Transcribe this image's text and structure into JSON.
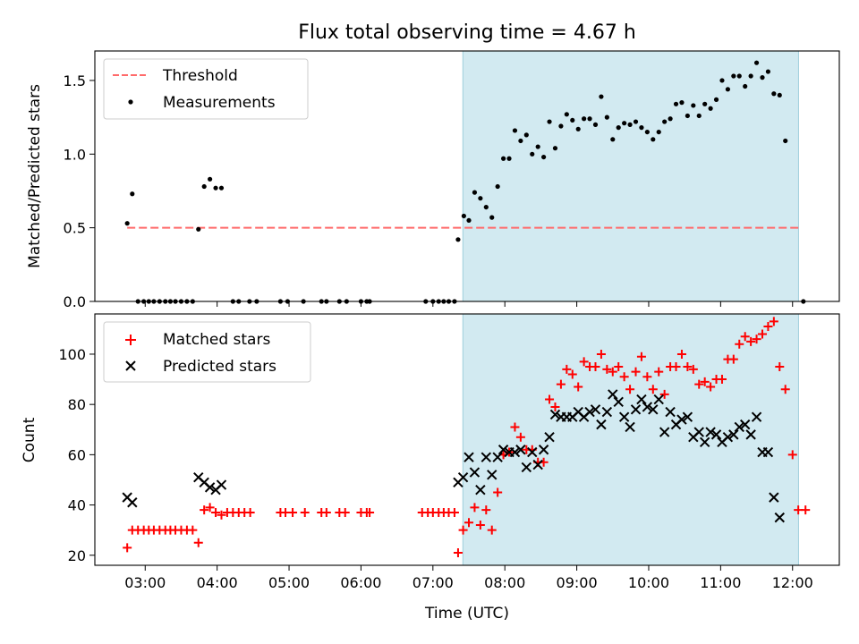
{
  "figure": {
    "title": "Flux total observing time = 4.67 h",
    "xlabel": "Time (UTC)",
    "x_ticks": [
      "03:00",
      "04:00",
      "05:00",
      "06:00",
      "07:00",
      "08:00",
      "09:00",
      "10:00",
      "11:00",
      "12:00"
    ],
    "shaded_color": "#add8e6",
    "threshold_color": "#ff6b6b",
    "measure_color": "#000000",
    "matched_color": "#ff0000",
    "predicted_color": "#000000"
  },
  "chart_data": [
    {
      "type": "scatter",
      "panel": "top",
      "ylabel": "Matched/Predicted stars",
      "ylim": [
        0,
        1.7
      ],
      "y_ticks": [
        "0.0",
        "0.5",
        "1.0",
        "1.5"
      ],
      "x_unit": "decimal hours UTC",
      "xlim": [
        2.3,
        12.65
      ],
      "shaded_range": [
        "07:25",
        "12:05"
      ],
      "legend_position": "upper-left",
      "threshold": {
        "name": "Threshold",
        "y": 0.5,
        "x_range": [
          2.75,
          12.12
        ]
      },
      "series": [
        {
          "name": "Measurements",
          "points": [
            [
              2.75,
              0.53
            ],
            [
              2.82,
              0.73
            ],
            [
              2.9,
              0
            ],
            [
              2.98,
              0
            ],
            [
              3.05,
              0
            ],
            [
              3.12,
              0
            ],
            [
              3.2,
              0
            ],
            [
              3.28,
              0
            ],
            [
              3.35,
              0
            ],
            [
              3.42,
              0
            ],
            [
              3.5,
              0
            ],
            [
              3.58,
              0
            ],
            [
              3.66,
              0
            ],
            [
              3.74,
              0.49
            ],
            [
              3.82,
              0.78
            ],
            [
              3.9,
              0.83
            ],
            [
              3.98,
              0.77
            ],
            [
              4.06,
              0.77
            ],
            [
              4.22,
              0
            ],
            [
              4.3,
              0
            ],
            [
              4.45,
              0
            ],
            [
              4.55,
              0
            ],
            [
              4.88,
              0
            ],
            [
              4.98,
              0
            ],
            [
              5.2,
              0
            ],
            [
              5.45,
              0
            ],
            [
              5.52,
              0
            ],
            [
              5.7,
              0
            ],
            [
              5.8,
              0
            ],
            [
              6.0,
              0
            ],
            [
              6.08,
              0
            ],
            [
              6.12,
              0
            ],
            [
              6.9,
              0
            ],
            [
              7.0,
              0
            ],
            [
              7.08,
              0
            ],
            [
              7.15,
              0
            ],
            [
              7.22,
              0
            ],
            [
              7.3,
              0
            ],
            [
              7.35,
              0.42
            ],
            [
              7.43,
              0.58
            ],
            [
              7.5,
              0.55
            ],
            [
              7.58,
              0.74
            ],
            [
              7.66,
              0.7
            ],
            [
              7.74,
              0.64
            ],
            [
              7.82,
              0.57
            ],
            [
              7.9,
              0.78
            ],
            [
              7.98,
              0.97
            ],
            [
              8.06,
              0.97
            ],
            [
              8.14,
              1.16
            ],
            [
              8.22,
              1.09
            ],
            [
              8.3,
              1.13
            ],
            [
              8.38,
              1.0
            ],
            [
              8.46,
              1.05
            ],
            [
              8.54,
              0.98
            ],
            [
              8.62,
              1.22
            ],
            [
              8.7,
              1.04
            ],
            [
              8.78,
              1.19
            ],
            [
              8.86,
              1.27
            ],
            [
              8.94,
              1.23
            ],
            [
              9.02,
              1.17
            ],
            [
              9.1,
              1.24
            ],
            [
              9.18,
              1.24
            ],
            [
              9.26,
              1.2
            ],
            [
              9.34,
              1.39
            ],
            [
              9.42,
              1.25
            ],
            [
              9.5,
              1.1
            ],
            [
              9.58,
              1.18
            ],
            [
              9.66,
              1.21
            ],
            [
              9.74,
              1.2
            ],
            [
              9.82,
              1.22
            ],
            [
              9.9,
              1.18
            ],
            [
              9.98,
              1.15
            ],
            [
              10.06,
              1.1
            ],
            [
              10.14,
              1.15
            ],
            [
              10.22,
              1.22
            ],
            [
              10.3,
              1.24
            ],
            [
              10.38,
              1.34
            ],
            [
              10.46,
              1.35
            ],
            [
              10.54,
              1.26
            ],
            [
              10.62,
              1.33
            ],
            [
              10.7,
              1.26
            ],
            [
              10.78,
              1.34
            ],
            [
              10.86,
              1.31
            ],
            [
              10.94,
              1.37
            ],
            [
              11.02,
              1.5
            ],
            [
              11.1,
              1.44
            ],
            [
              11.18,
              1.53
            ],
            [
              11.26,
              1.53
            ],
            [
              11.34,
              1.46
            ],
            [
              11.42,
              1.53
            ],
            [
              11.5,
              1.62
            ],
            [
              11.58,
              1.52
            ],
            [
              11.66,
              1.56
            ],
            [
              11.74,
              1.41
            ],
            [
              11.82,
              1.4
            ],
            [
              11.9,
              1.09
            ],
            [
              12.15,
              0
            ]
          ]
        }
      ]
    },
    {
      "type": "scatter",
      "panel": "bottom",
      "ylabel": "Count",
      "ylim": [
        16,
        116
      ],
      "y_ticks": [
        "20",
        "40",
        "60",
        "80",
        "100"
      ],
      "x_unit": "decimal hours UTC",
      "xlim": [
        2.3,
        12.65
      ],
      "shaded_range": [
        "07:25",
        "12:05"
      ],
      "legend_position": "upper-left",
      "series": [
        {
          "name": "Matched stars",
          "marker": "plus",
          "points": [
            [
              2.75,
              23
            ],
            [
              2.82,
              30
            ],
            [
              2.9,
              30
            ],
            [
              2.98,
              30
            ],
            [
              3.05,
              30
            ],
            [
              3.12,
              30
            ],
            [
              3.2,
              30
            ],
            [
              3.28,
              30
            ],
            [
              3.35,
              30
            ],
            [
              3.42,
              30
            ],
            [
              3.5,
              30
            ],
            [
              3.58,
              30
            ],
            [
              3.66,
              30
            ],
            [
              3.74,
              25
            ],
            [
              3.82,
              38
            ],
            [
              3.9,
              39
            ],
            [
              3.98,
              37
            ],
            [
              4.06,
              36
            ],
            [
              4.14,
              37
            ],
            [
              4.22,
              37
            ],
            [
              4.3,
              37
            ],
            [
              4.38,
              37
            ],
            [
              4.46,
              37
            ],
            [
              4.88,
              37
            ],
            [
              4.95,
              37
            ],
            [
              5.05,
              37
            ],
            [
              5.22,
              37
            ],
            [
              5.45,
              37
            ],
            [
              5.52,
              37
            ],
            [
              5.7,
              37
            ],
            [
              5.78,
              37
            ],
            [
              6.0,
              37
            ],
            [
              6.08,
              37
            ],
            [
              6.12,
              37
            ],
            [
              6.85,
              37
            ],
            [
              6.93,
              37
            ],
            [
              7.0,
              37
            ],
            [
              7.08,
              37
            ],
            [
              7.15,
              37
            ],
            [
              7.22,
              37
            ],
            [
              7.3,
              37
            ],
            [
              7.35,
              21
            ],
            [
              7.42,
              30
            ],
            [
              7.5,
              33
            ],
            [
              7.58,
              39
            ],
            [
              7.66,
              32
            ],
            [
              7.74,
              38
            ],
            [
              7.82,
              30
            ],
            [
              7.9,
              45
            ],
            [
              7.98,
              60
            ],
            [
              8.06,
              61
            ],
            [
              8.14,
              71
            ],
            [
              8.22,
              67
            ],
            [
              8.3,
              62
            ],
            [
              8.38,
              62
            ],
            [
              8.46,
              57
            ],
            [
              8.54,
              57
            ],
            [
              8.62,
              82
            ],
            [
              8.7,
              79
            ],
            [
              8.78,
              88
            ],
            [
              8.86,
              94
            ],
            [
              8.94,
              92
            ],
            [
              9.02,
              87
            ],
            [
              9.1,
              97
            ],
            [
              9.18,
              95
            ],
            [
              9.26,
              95
            ],
            [
              9.34,
              100
            ],
            [
              9.42,
              94
            ],
            [
              9.5,
              93
            ],
            [
              9.58,
              95
            ],
            [
              9.66,
              91
            ],
            [
              9.74,
              86
            ],
            [
              9.82,
              93
            ],
            [
              9.9,
              99
            ],
            [
              9.98,
              91
            ],
            [
              10.06,
              86
            ],
            [
              10.14,
              93
            ],
            [
              10.22,
              84
            ],
            [
              10.3,
              95
            ],
            [
              10.38,
              95
            ],
            [
              10.46,
              100
            ],
            [
              10.54,
              95
            ],
            [
              10.62,
              94
            ],
            [
              10.7,
              88
            ],
            [
              10.78,
              89
            ],
            [
              10.86,
              87
            ],
            [
              10.94,
              90
            ],
            [
              11.02,
              90
            ],
            [
              11.1,
              98
            ],
            [
              11.18,
              98
            ],
            [
              11.26,
              104
            ],
            [
              11.34,
              107
            ],
            [
              11.42,
              105
            ],
            [
              11.5,
              106
            ],
            [
              11.58,
              108
            ],
            [
              11.66,
              111
            ],
            [
              11.74,
              113
            ],
            [
              11.82,
              95
            ],
            [
              11.9,
              86
            ],
            [
              12.0,
              60
            ],
            [
              12.08,
              38
            ],
            [
              12.18,
              38
            ]
          ]
        },
        {
          "name": "Predicted stars",
          "marker": "x",
          "points": [
            [
              2.75,
              43
            ],
            [
              2.82,
              41
            ],
            [
              3.74,
              51
            ],
            [
              3.82,
              49
            ],
            [
              3.9,
              47
            ],
            [
              3.98,
              46
            ],
            [
              4.06,
              48
            ],
            [
              7.35,
              49
            ],
            [
              7.42,
              51
            ],
            [
              7.5,
              59
            ],
            [
              7.58,
              53
            ],
            [
              7.66,
              46
            ],
            [
              7.74,
              59
            ],
            [
              7.82,
              52
            ],
            [
              7.9,
              59
            ],
            [
              7.98,
              62
            ],
            [
              8.06,
              61
            ],
            [
              8.14,
              61
            ],
            [
              8.22,
              62
            ],
            [
              8.3,
              55
            ],
            [
              8.38,
              61
            ],
            [
              8.46,
              56
            ],
            [
              8.54,
              62
            ],
            [
              8.62,
              67
            ],
            [
              8.7,
              76
            ],
            [
              8.78,
              75
            ],
            [
              8.86,
              75
            ],
            [
              8.94,
              75
            ],
            [
              9.02,
              77
            ],
            [
              9.1,
              75
            ],
            [
              9.18,
              77
            ],
            [
              9.26,
              78
            ],
            [
              9.34,
              72
            ],
            [
              9.42,
              77
            ],
            [
              9.5,
              84
            ],
            [
              9.58,
              81
            ],
            [
              9.66,
              75
            ],
            [
              9.74,
              71
            ],
            [
              9.82,
              78
            ],
            [
              9.9,
              82
            ],
            [
              9.98,
              79
            ],
            [
              10.06,
              78
            ],
            [
              10.14,
              82
            ],
            [
              10.22,
              69
            ],
            [
              10.3,
              77
            ],
            [
              10.38,
              72
            ],
            [
              10.46,
              74
            ],
            [
              10.54,
              75
            ],
            [
              10.62,
              67
            ],
            [
              10.7,
              69
            ],
            [
              10.78,
              65
            ],
            [
              10.86,
              69
            ],
            [
              10.94,
              68
            ],
            [
              11.02,
              65
            ],
            [
              11.1,
              67
            ],
            [
              11.18,
              68
            ],
            [
              11.26,
              71
            ],
            [
              11.34,
              72
            ],
            [
              11.42,
              68
            ],
            [
              11.5,
              75
            ],
            [
              11.58,
              61
            ],
            [
              11.66,
              61
            ],
            [
              11.74,
              43
            ],
            [
              11.82,
              35
            ]
          ]
        }
      ]
    }
  ]
}
